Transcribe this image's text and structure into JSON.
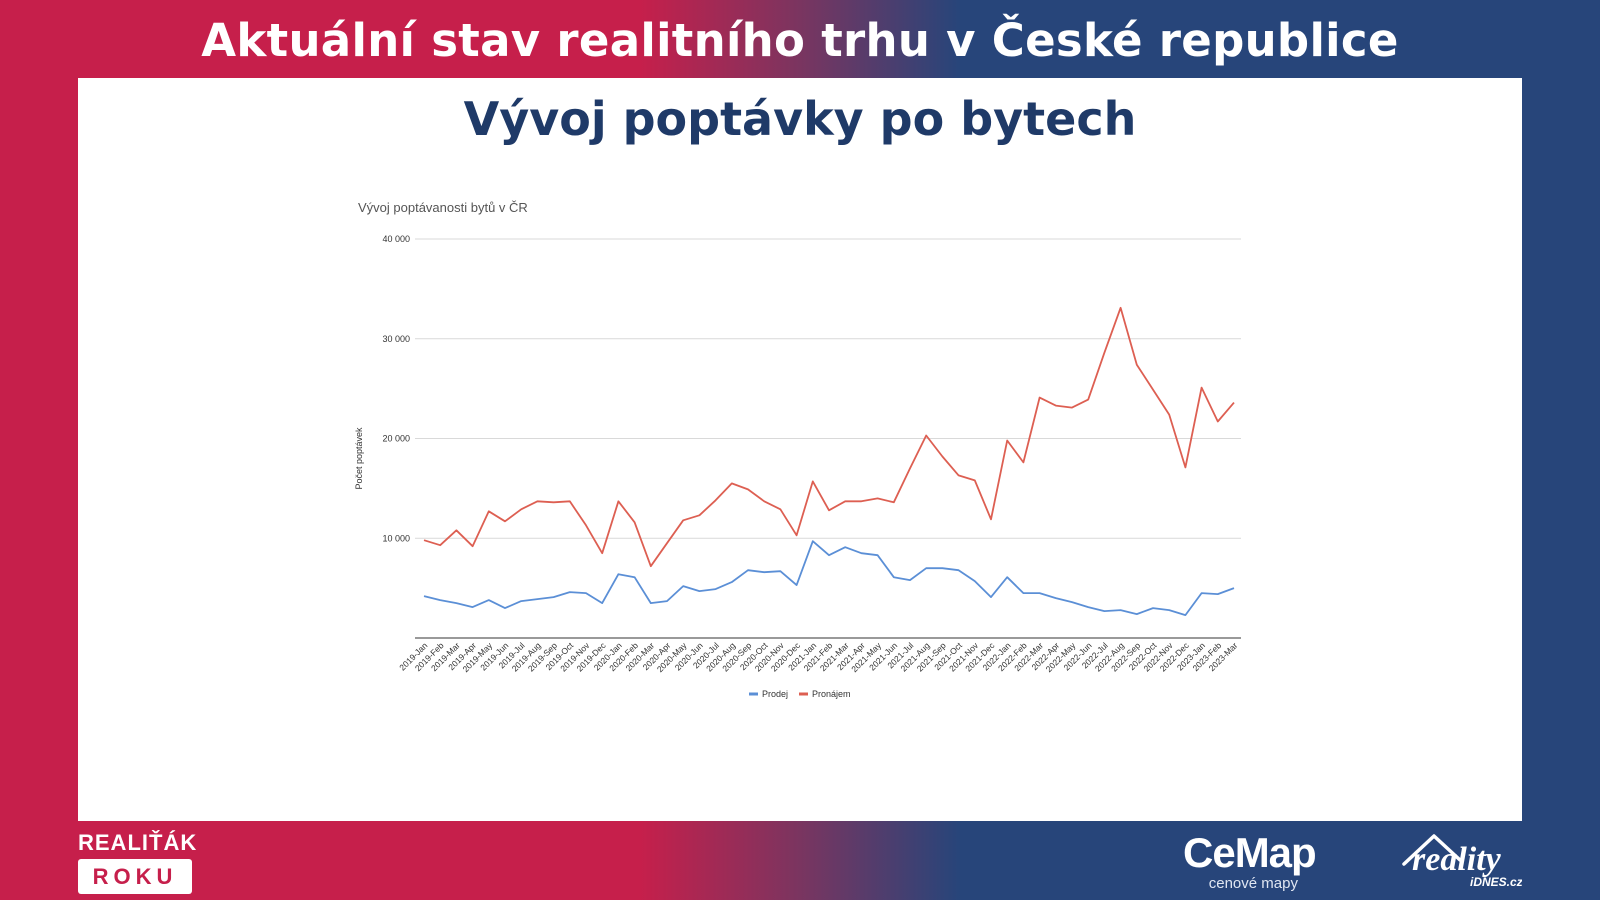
{
  "header": {
    "title": "Aktuální stav realitního trhu v České republice"
  },
  "panel": {
    "title": "Vývoj poptávky po bytech"
  },
  "branding": {
    "left_line1": "REALIŤÁK",
    "left_line2": "ROKU",
    "cemap_main": "CeMap",
    "cemap_sub": "cenové mapy",
    "reality_main": "reality",
    "reality_sub": "iDNES.cz"
  },
  "colors": {
    "brand_red": "#c61f4b",
    "brand_blue": "#27457a",
    "title_blue": "#1f3a68",
    "series_prodej": "#5b8fd6",
    "series_pronajem": "#dd5f52",
    "grid": "#d9d9d9"
  },
  "chart_data": {
    "type": "line",
    "title": "Vývoj poptávanosti bytů v ČR",
    "xlabel": "",
    "ylabel": "Počet poptávek",
    "ylim": [
      0,
      40000
    ],
    "yticks": [
      10000,
      20000,
      30000,
      40000
    ],
    "ytick_labels": [
      "10 000",
      "20 000",
      "30 000",
      "40 000"
    ],
    "grid": true,
    "legend_position": "bottom",
    "categories": [
      "2019-Jan",
      "2019-Feb",
      "2019-Mar",
      "2019-Apr",
      "2019-May",
      "2019-Jun",
      "2019-Jul",
      "2019-Aug",
      "2019-Sep",
      "2019-Oct",
      "2019-Nov",
      "2019-Dec",
      "2020-Jan",
      "2020-Feb",
      "2020-Mar",
      "2020-Apr",
      "2020-May",
      "2020-Jun",
      "2020-Jul",
      "2020-Aug",
      "2020-Sep",
      "2020-Oct",
      "2020-Nov",
      "2020-Dec",
      "2021-Jan",
      "2021-Feb",
      "2021-Mar",
      "2021-Apr",
      "2021-May",
      "2021-Jun",
      "2021-Jul",
      "2021-Aug",
      "2021-Sep",
      "2021-Oct",
      "2021-Nov",
      "2021-Dec",
      "2022-Jan",
      "2022-Feb",
      "2022-Mar",
      "2022-Apr",
      "2022-May",
      "2022-Jun",
      "2022-Jul",
      "2022-Aug",
      "2022-Sep",
      "2022-Oct",
      "2022-Nov",
      "2022-Dec",
      "2023-Jan",
      "2023-Feb",
      "2023-Mar"
    ],
    "series": [
      {
        "name": "Prodej",
        "values": [
          4200,
          3800,
          3500,
          3100,
          3800,
          3000,
          3700,
          3900,
          4100,
          4600,
          4500,
          3500,
          6400,
          6100,
          3500,
          3700,
          5200,
          4700,
          4900,
          5600,
          6800,
          6600,
          6700,
          5300,
          9700,
          8300,
          9100,
          8500,
          8300,
          6100,
          5800,
          7000,
          7000,
          6800,
          5700,
          4100,
          6100,
          4500,
          4500,
          4000,
          3600,
          3100,
          2700,
          2800,
          2400,
          3000,
          2800,
          2300,
          4500,
          4400,
          5000
        ]
      },
      {
        "name": "Pronájem",
        "values": [
          9800,
          9300,
          10800,
          9200,
          12700,
          11700,
          12900,
          13700,
          13600,
          13700,
          11300,
          8500,
          13700,
          11600,
          7200,
          9500,
          11800,
          12300,
          13800,
          15500,
          14900,
          13700,
          12900,
          10300,
          15700,
          12800,
          13700,
          13700,
          14000,
          13600,
          17000,
          20300,
          18200,
          16300,
          15800,
          11900,
          19800,
          17600,
          24100,
          23300,
          23100,
          23900,
          28600,
          33100,
          27400,
          24900,
          22400,
          17100,
          25100,
          21700,
          23600
        ]
      }
    ]
  }
}
